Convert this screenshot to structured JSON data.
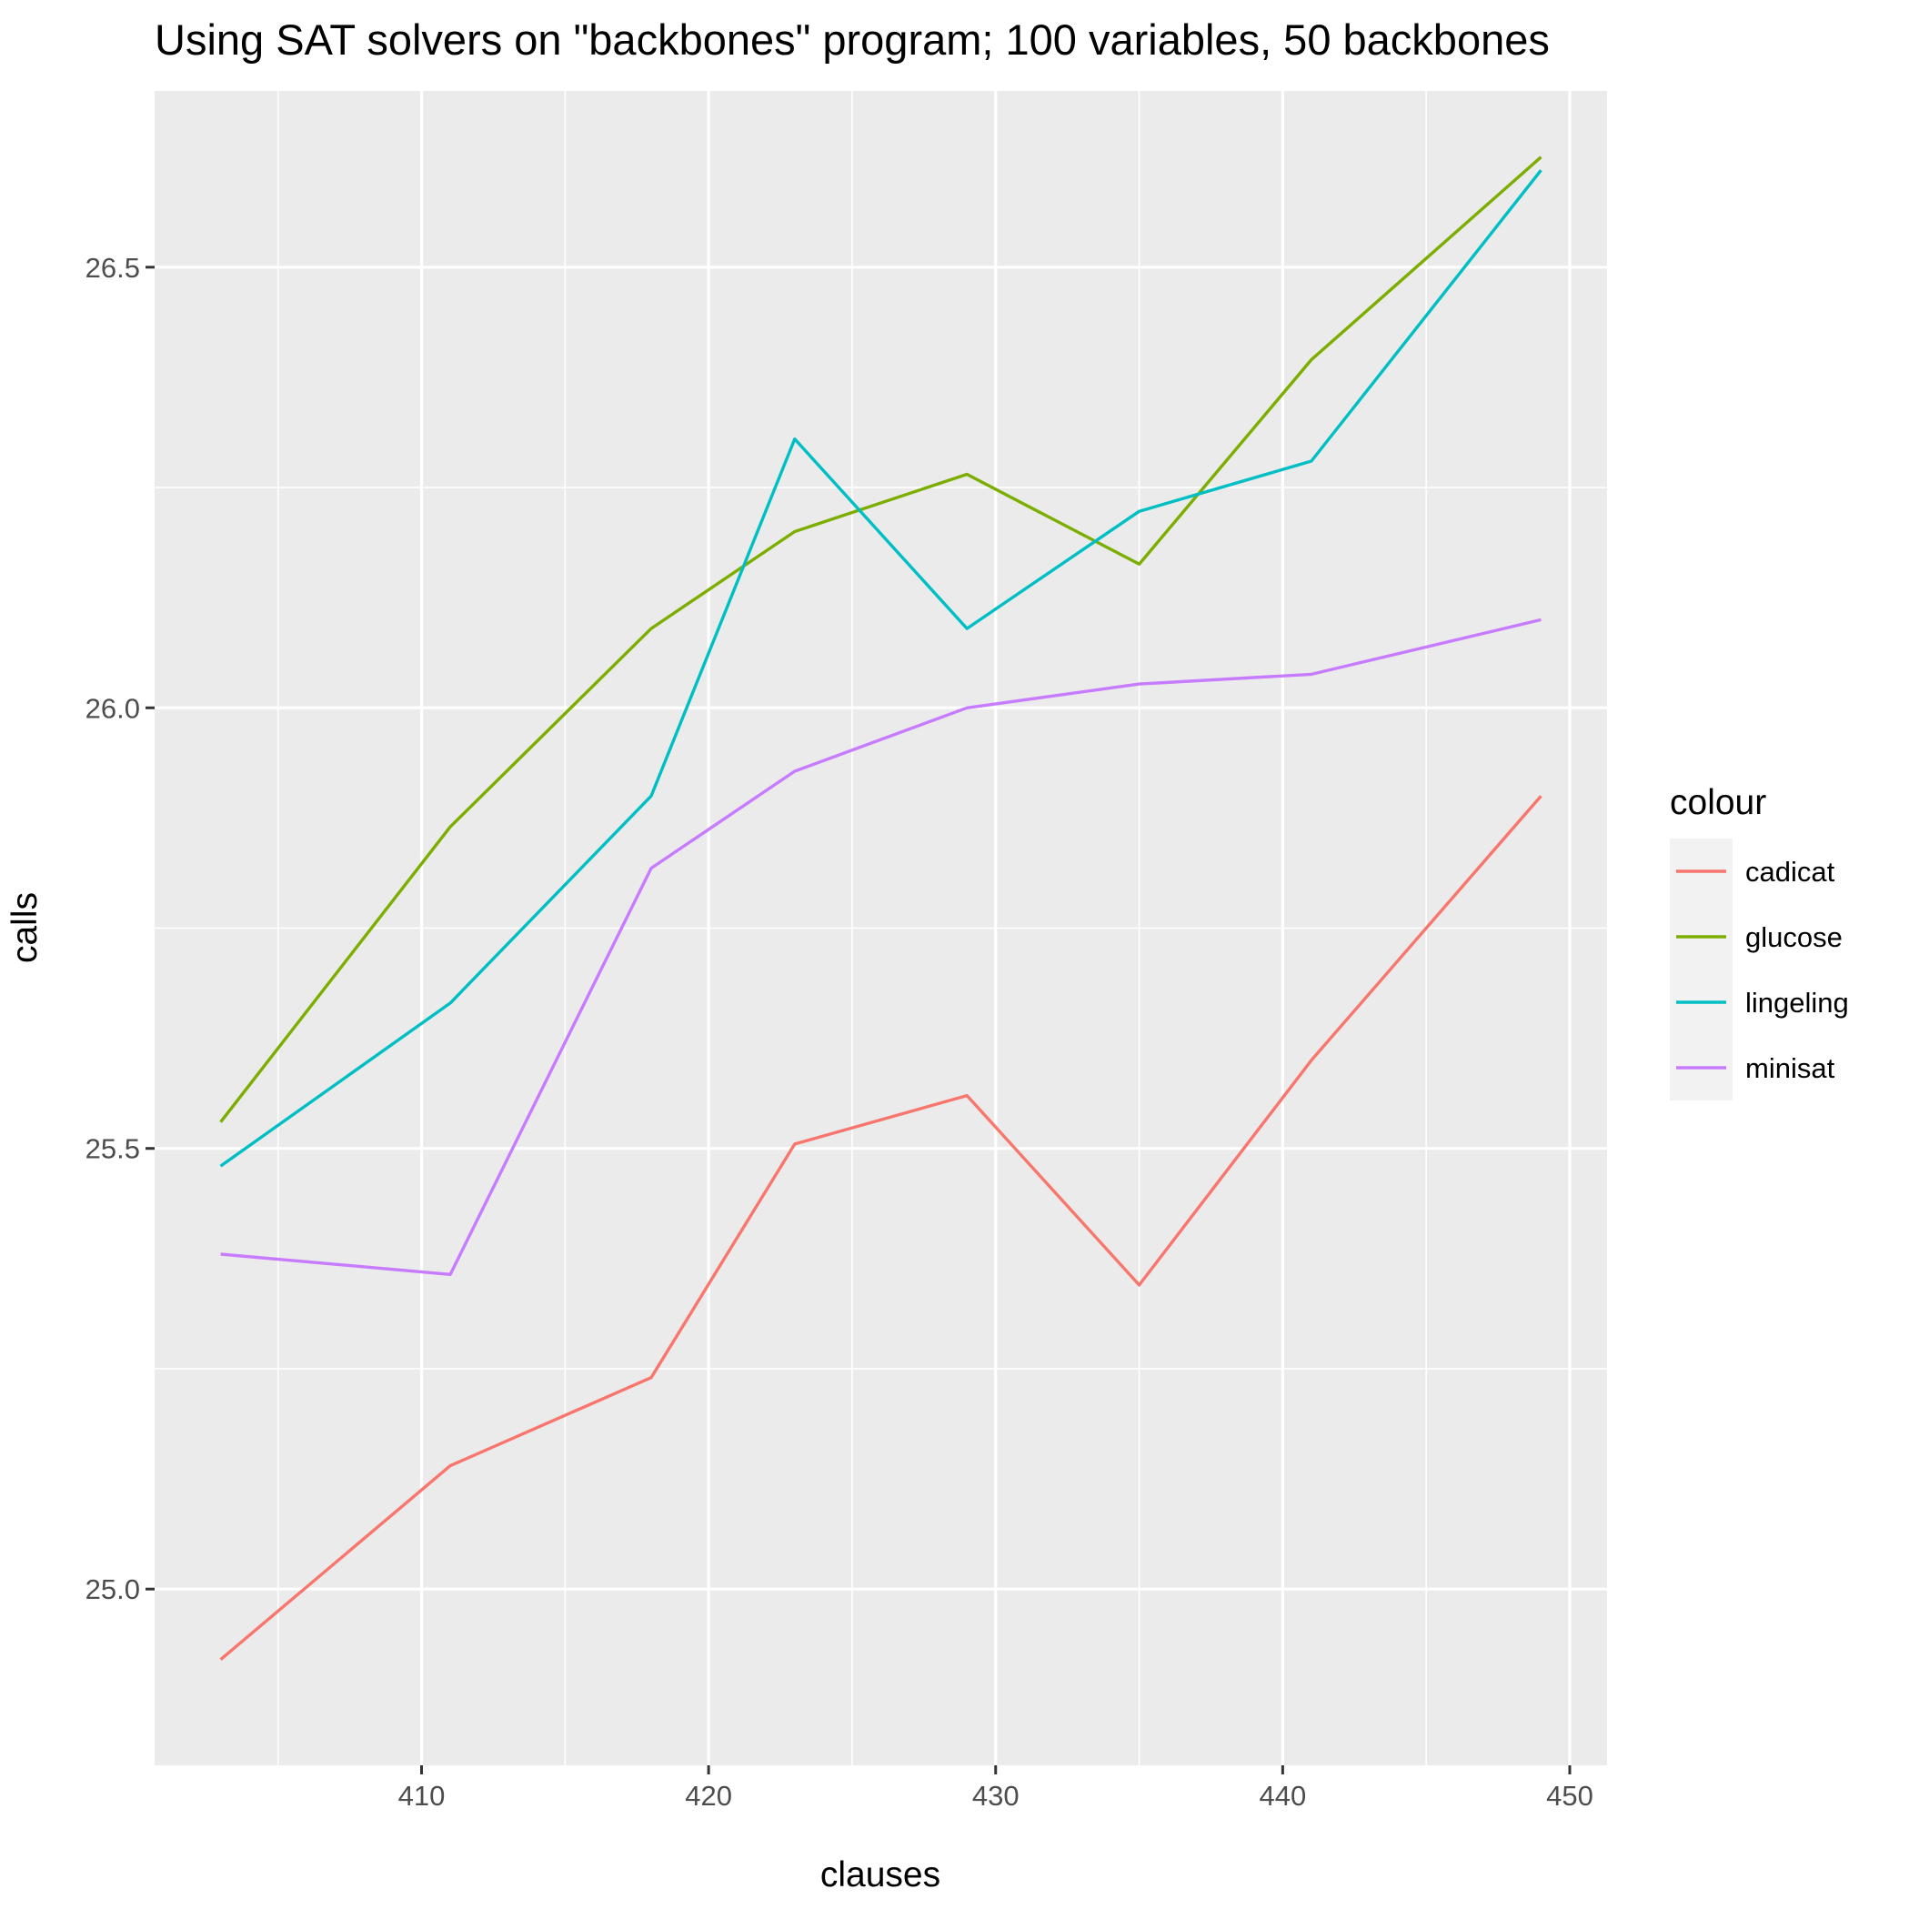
{
  "chart_data": {
    "type": "line",
    "title": "Using SAT solvers on \"backbones\" program; 100 variables, 50 backbones",
    "xlabel": "clauses",
    "ylabel": "calls",
    "x": [
      403,
      411,
      418,
      423,
      429,
      435,
      441,
      449
    ],
    "xlim": [
      400.7,
      451.3
    ],
    "ylim": [
      24.8,
      26.7
    ],
    "x_ticks": [
      410,
      420,
      430,
      440,
      450
    ],
    "x_minor_ticks": [
      405,
      415,
      425,
      435,
      445
    ],
    "y_ticks": [
      25.0,
      25.5,
      26.0,
      26.5
    ],
    "y_tick_labels": [
      "25.0",
      "25.5",
      "26.0",
      "26.5"
    ],
    "y_minor_ticks": [
      25.25,
      25.75,
      26.25
    ],
    "grid": true,
    "legend": {
      "title": "colour",
      "position": "right"
    },
    "series": [
      {
        "name": "cadicat",
        "color": "#F8766D",
        "values": [
          24.92,
          25.14,
          25.24,
          25.505,
          25.56,
          25.345,
          25.6,
          25.9
        ]
      },
      {
        "name": "glucose",
        "color": "#7CAE00",
        "values": [
          25.53,
          25.865,
          26.09,
          26.2,
          26.265,
          26.163,
          26.395,
          26.625
        ]
      },
      {
        "name": "lingeling",
        "color": "#00BFC4",
        "values": [
          25.48,
          25.665,
          25.9,
          26.305,
          26.09,
          26.223,
          26.28,
          26.61
        ]
      },
      {
        "name": "minisat",
        "color": "#C77CFF",
        "values": [
          25.38,
          25.357,
          25.818,
          25.928,
          26.0,
          26.027,
          26.038,
          26.1
        ]
      }
    ]
  }
}
